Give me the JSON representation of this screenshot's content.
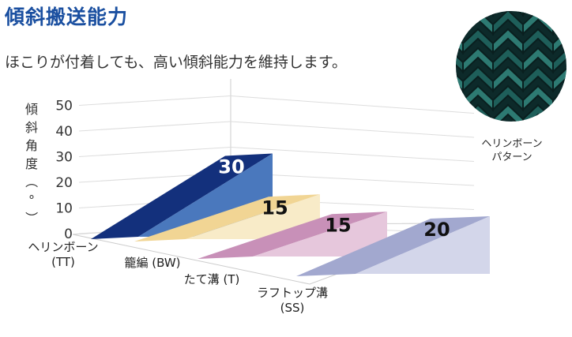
{
  "title": "傾斜搬送能力",
  "subtitle": "ほこりが付着しても、高い傾斜能力を維持します。",
  "photo_caption": "ヘリンボーン\nパターン",
  "chart_data": {
    "type": "bar",
    "ylabel": "傾斜角度（°）",
    "ylim": [
      0,
      50
    ],
    "yticks": [
      "0",
      "10",
      "20",
      "30",
      "40",
      "50"
    ],
    "categories": [
      {
        "line1": "ヘリンボーン",
        "line2": "(TT)"
      },
      {
        "line1": "籠編 (BW)",
        "line2": ""
      },
      {
        "line1": "たて溝 (T)",
        "line2": ""
      },
      {
        "line1": "ラフトップ溝",
        "line2": "(SS)"
      }
    ],
    "values": [
      30,
      15,
      15,
      20
    ],
    "value_labels": [
      "30",
      "15",
      "15",
      "20"
    ],
    "colors": [
      {
        "top": "#13307c",
        "side": "#4a78bd",
        "label": "#ffffff"
      },
      {
        "top": "#f1d594",
        "side": "#f8ebc8",
        "label": "#111111"
      },
      {
        "top": "#c890b8",
        "side": "#e6c7dc",
        "label": "#111111"
      },
      {
        "top": "#a2a8cf",
        "side": "#d3d6ea",
        "label": "#111111"
      }
    ]
  }
}
